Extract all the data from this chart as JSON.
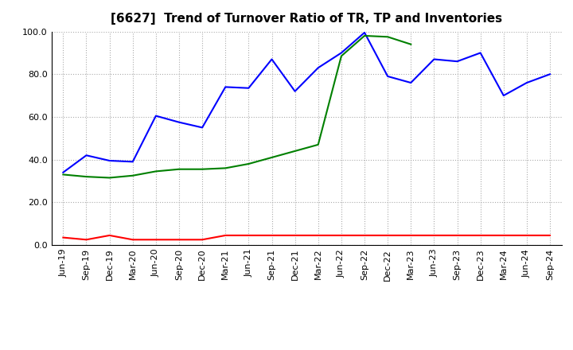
{
  "title": "[6627]  Trend of Turnover Ratio of TR, TP and Inventories",
  "labels": [
    "Jun-19",
    "Sep-19",
    "Dec-19",
    "Mar-20",
    "Jun-20",
    "Sep-20",
    "Dec-20",
    "Mar-21",
    "Jun-21",
    "Sep-21",
    "Dec-21",
    "Mar-22",
    "Jun-22",
    "Sep-22",
    "Dec-22",
    "Mar-23",
    "Jun-23",
    "Sep-23",
    "Dec-23",
    "Mar-24",
    "Jun-24",
    "Sep-24"
  ],
  "trade_receivables": [
    3.5,
    2.5,
    4.5,
    2.5,
    2.5,
    2.5,
    2.5,
    4.5,
    4.5,
    4.5,
    4.5,
    4.5,
    4.5,
    4.5,
    4.5,
    4.5,
    4.5,
    4.5,
    4.5,
    4.5,
    4.5,
    4.5
  ],
  "trade_payables": [
    34.0,
    42.0,
    39.5,
    39.0,
    60.5,
    57.5,
    55.0,
    74.0,
    73.5,
    87.0,
    72.0,
    83.0,
    90.0,
    99.5,
    79.0,
    76.0,
    87.0,
    86.0,
    90.0,
    70.0,
    76.0,
    80.0
  ],
  "inventories": [
    33.0,
    32.0,
    31.5,
    32.5,
    34.5,
    35.5,
    35.5,
    36.0,
    38.0,
    41.0,
    44.0,
    47.0,
    88.5,
    98.0,
    97.5,
    94.0,
    null,
    null,
    null,
    null,
    null,
    null
  ],
  "tr_color": "#ff0000",
  "tp_color": "#0000ff",
  "inv_color": "#008000",
  "ylim": [
    0.0,
    100.0
  ],
  "yticks": [
    0.0,
    20.0,
    40.0,
    60.0,
    80.0,
    100.0
  ],
  "background_color": "#ffffff",
  "grid_color": "#aaaaaa",
  "title_fontsize": 11,
  "tick_fontsize": 8,
  "legend_fontsize": 9
}
